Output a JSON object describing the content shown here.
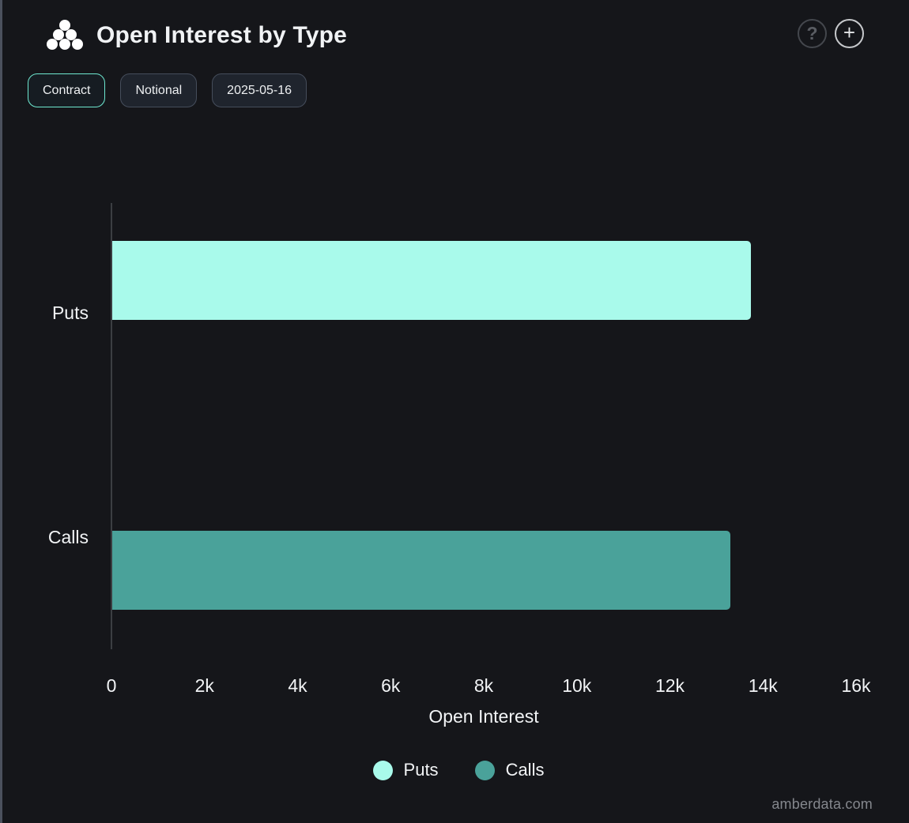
{
  "header": {
    "title": "Open Interest by Type",
    "help_button": "?",
    "add_button": "+"
  },
  "toolbar": {
    "buttons": [
      {
        "label": "Contract",
        "active": true
      },
      {
        "label": "Notional",
        "active": false
      },
      {
        "label": "2025-05-16",
        "active": false
      }
    ]
  },
  "chart_data": {
    "type": "bar",
    "orientation": "horizontal",
    "title": "Open Interest by Type",
    "categories": [
      "Puts",
      "Calls"
    ],
    "values": [
      13730,
      13280
    ],
    "bar_colors": [
      "#a9faeb",
      "#4aa29a"
    ],
    "xlabel": "Open Interest",
    "xlim": [
      0,
      16000
    ],
    "xticks": [
      "0",
      "2k",
      "4k",
      "6k",
      "8k",
      "10k",
      "12k",
      "14k",
      "16k"
    ],
    "grid": false,
    "legend_position": "bottom",
    "legend": [
      {
        "label": "Puts",
        "color": "#a9faeb"
      },
      {
        "label": "Calls",
        "color": "#4aa29a"
      }
    ]
  },
  "footer": {
    "watermark": "amberdata.com"
  },
  "colors": {
    "background": "#15161a",
    "accent_border": "#6ee8d0",
    "puts": "#a9faeb",
    "calls": "#4aa29a",
    "axis_line": "#3b3e42"
  }
}
